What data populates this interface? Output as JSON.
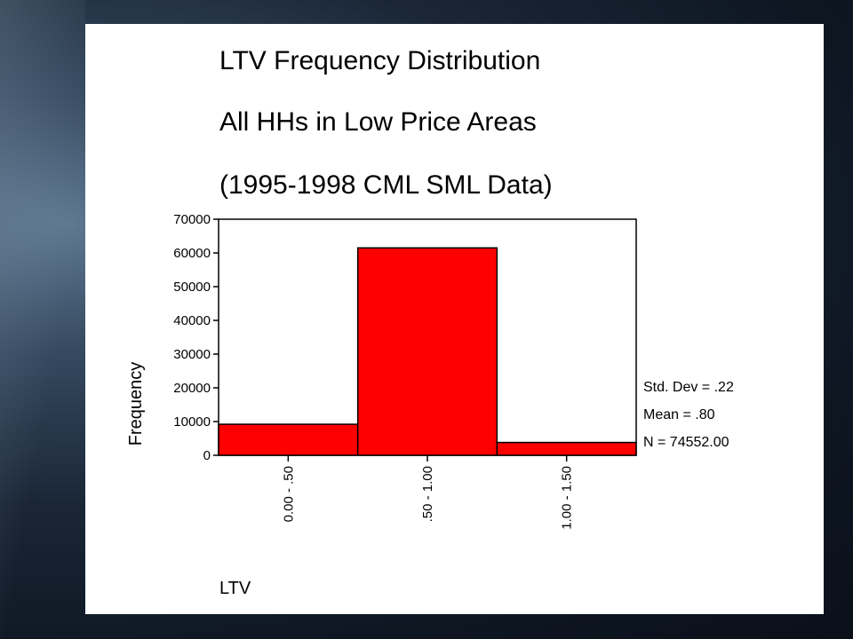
{
  "slide": {
    "title_lines": [
      "LTV Frequency Distribution",
      "All HHs in Low Price Areas",
      "(1995-1998 CML SML Data)"
    ]
  },
  "chart_data": {
    "type": "bar",
    "title": "LTV Frequency Distribution",
    "subtitle": "All HHs in Low Price Areas (1995-1998 CML SML Data)",
    "categories": [
      "0.00 - .50",
      ".50 - 1.00",
      "1.00 - 1.50"
    ],
    "values": [
      9200,
      61500,
      3800
    ],
    "xlabel": "LTV",
    "ylabel": "Frequency",
    "ylim": [
      0,
      70000
    ],
    "yticks": [
      0,
      10000,
      20000,
      30000,
      40000,
      50000,
      60000,
      70000
    ],
    "bar_color": "#ff0000",
    "bar_edge_color": "#000000",
    "grid": false,
    "legend": "none",
    "stats": [
      "Std. Dev = .22",
      "Mean = .80",
      "N = 74552.00"
    ]
  }
}
